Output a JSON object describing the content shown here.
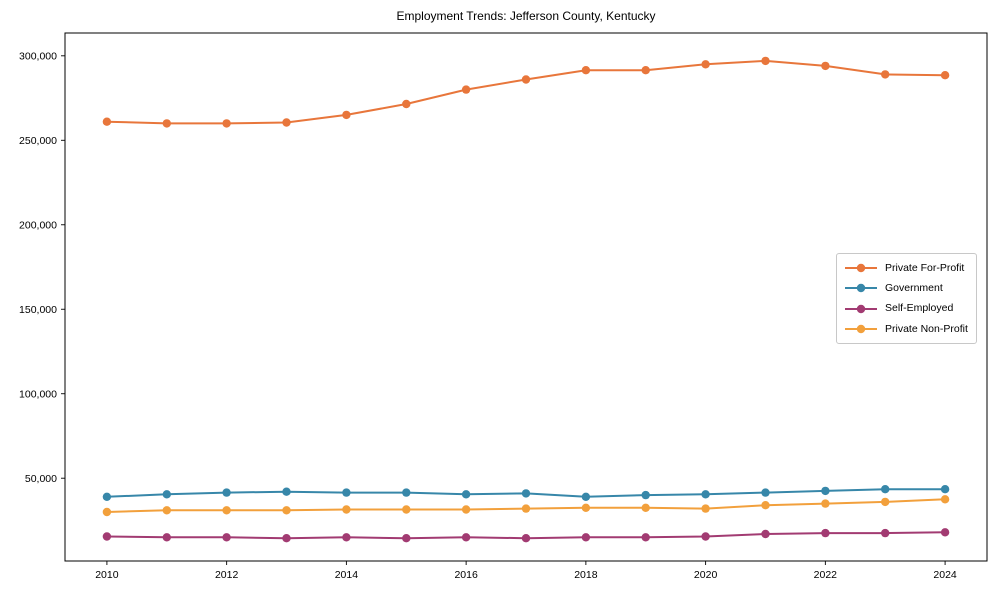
{
  "chart_data": {
    "type": "line",
    "title": "Employment Trends: Jefferson County, Kentucky",
    "xlabel": "",
    "ylabel": "",
    "grid": false,
    "legend_position": "center right",
    "marker": "circle",
    "xlim": [
      2009.3,
      2024.7
    ],
    "ylim": [
      1000,
      313500
    ],
    "xticks": [
      2010,
      2012,
      2014,
      2016,
      2018,
      2020,
      2022,
      2024
    ],
    "yticks": [
      50000,
      100000,
      150000,
      200000,
      250000,
      300000
    ],
    "ytick_labels": [
      "50,000",
      "100,000",
      "150,000",
      "200,000",
      "250,000",
      "300,000"
    ],
    "x": [
      2010,
      2011,
      2012,
      2013,
      2014,
      2015,
      2016,
      2017,
      2018,
      2019,
      2020,
      2021,
      2022,
      2023,
      2024
    ],
    "series": [
      {
        "name": "Private For-Profit",
        "color": "#E8763B",
        "values": [
          261000,
          260000,
          260000,
          260500,
          265000,
          271500,
          280000,
          286000,
          291500,
          291500,
          295000,
          297000,
          294000,
          289000,
          288500
        ]
      },
      {
        "name": "Government",
        "color": "#3787A9",
        "values": [
          39000,
          40500,
          41500,
          42000,
          41500,
          41500,
          40500,
          41000,
          39000,
          40000,
          40500,
          41500,
          42500,
          43500,
          43500
        ]
      },
      {
        "name": "Self-Employed",
        "color": "#A23B72",
        "values": [
          15500,
          15000,
          15000,
          14500,
          15000,
          14500,
          15000,
          14500,
          15000,
          15000,
          15500,
          17000,
          17500,
          17500,
          18000
        ]
      },
      {
        "name": "Private Non-Profit",
        "color": "#F2A03C",
        "values": [
          30000,
          31000,
          31000,
          31000,
          31500,
          31500,
          31500,
          32000,
          32500,
          32500,
          32000,
          34000,
          35000,
          36000,
          37500
        ]
      }
    ]
  }
}
